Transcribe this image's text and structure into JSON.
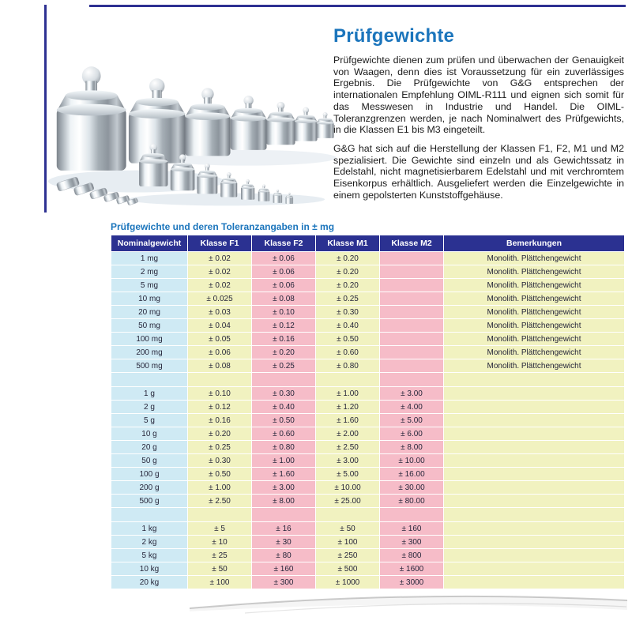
{
  "page": {
    "heading": "Prüfgewichte",
    "paragraphs": [
      "Prüfgewichte dienen zum prüfen und überwachen der Genauigkeit von Waagen, denn dies ist Voraussetzung für ein zuverlässiges Ergebnis. Die Prüfgewichte von G&G entsprechen der internationalen Empfehlung OIML-R111 und eignen sich somit für das Messwesen in Industrie und Handel. Die OIML-Toleranzgrenzen werden, je nach Nominalwert des Prüfgewichts, in die Klassen E1 bis M3 eingeteilt.",
      "G&G hat sich auf die Herstellung der Klassen F1, F2, M1 und M2 spezialisiert. Die Gewichte sind einzeln und als Gewichtssatz in Edelstahl, nicht magnetisierbarem Edelstahl und mit verchromtem Eisenkorpus erhältlich. Ausgeliefert werden die Einzelgewichte in einem gepolsterten Kunststoffgehäuse."
    ],
    "table_title": "Prüfgewichte und deren Toleranzangaben in ± mg",
    "photo_description": "chrome-calibration-weights"
  },
  "colors": {
    "accent_blue": "#1b75bc",
    "rule_navy": "#2e3192",
    "header_bg": "#2b3191",
    "header_text": "#ffffff",
    "col_nominal": "#cfeaf4",
    "col_yellow": "#f1f2c0",
    "col_pink": "#f6bcc8"
  },
  "table": {
    "headers": [
      "Nominalgewicht",
      "Klasse F1",
      "Klasse F2",
      "Klasse M1",
      "Klasse M2",
      "Bemerkungen"
    ],
    "col_colors": [
      "#cfeaf4",
      "#f1f2c0",
      "#f6bcc8",
      "#f1f2c0",
      "#f6bcc8",
      "#f1f2c0"
    ],
    "sections": [
      {
        "unit": "mg",
        "rows": [
          [
            "1 mg",
            "± 0.02",
            "± 0.06",
            "± 0.20",
            "",
            "Monolith. Plättchengewicht"
          ],
          [
            "2 mg",
            "± 0.02",
            "± 0.06",
            "± 0.20",
            "",
            "Monolith. Plättchengewicht"
          ],
          [
            "5 mg",
            "± 0.02",
            "± 0.06",
            "± 0.20",
            "",
            "Monolith. Plättchengewicht"
          ],
          [
            "10 mg",
            "± 0.025",
            "± 0.08",
            "± 0.25",
            "",
            "Monolith. Plättchengewicht"
          ],
          [
            "20 mg",
            "± 0.03",
            "± 0.10",
            "± 0.30",
            "",
            "Monolith. Plättchengewicht"
          ],
          [
            "50 mg",
            "± 0.04",
            "± 0.12",
            "± 0.40",
            "",
            "Monolith. Plättchengewicht"
          ],
          [
            "100 mg",
            "± 0.05",
            "± 0.16",
            "± 0.50",
            "",
            "Monolith. Plättchengewicht"
          ],
          [
            "200 mg",
            "± 0.06",
            "± 0.20",
            "± 0.60",
            "",
            "Monolith. Plättchengewicht"
          ],
          [
            "500 mg",
            "± 0.08",
            "± 0.25",
            "± 0.80",
            "",
            "Monolith. Plättchengewicht"
          ]
        ]
      },
      {
        "unit": "g",
        "rows": [
          [
            "1 g",
            "± 0.10",
            "± 0.30",
            "± 1.00",
            "± 3.00",
            ""
          ],
          [
            "2 g",
            "± 0.12",
            "± 0.40",
            "± 1.20",
            "± 4.00",
            ""
          ],
          [
            "5 g",
            "± 0.16",
            "± 0.50",
            "± 1.60",
            "± 5.00",
            ""
          ],
          [
            "10 g",
            "± 0.20",
            "± 0.60",
            "± 2.00",
            "± 6.00",
            ""
          ],
          [
            "20 g",
            "± 0.25",
            "± 0.80",
            "± 2.50",
            "± 8.00",
            ""
          ],
          [
            "50 g",
            "± 0.30",
            "± 1.00",
            "± 3.00",
            "± 10.00",
            ""
          ],
          [
            "100 g",
            "± 0.50",
            "± 1.60",
            "± 5.00",
            "± 16.00",
            ""
          ],
          [
            "200 g",
            "± 1.00",
            "± 3.00",
            "± 10.00",
            "± 30.00",
            ""
          ],
          [
            "500 g",
            "± 2.50",
            "± 8.00",
            "± 25.00",
            "± 80.00",
            ""
          ]
        ]
      },
      {
        "unit": "kg",
        "rows": [
          [
            "1 kg",
            "± 5",
            "± 16",
            "± 50",
            "± 160",
            ""
          ],
          [
            "2 kg",
            "± 10",
            "± 30",
            "± 100",
            "± 300",
            ""
          ],
          [
            "5 kg",
            "± 25",
            "± 80",
            "± 250",
            "± 800",
            ""
          ],
          [
            "10 kg",
            "± 50",
            "± 160",
            "± 500",
            "± 1600",
            ""
          ],
          [
            "20 kg",
            "± 100",
            "± 300",
            "± 1000",
            "± 3000",
            ""
          ]
        ]
      }
    ]
  }
}
